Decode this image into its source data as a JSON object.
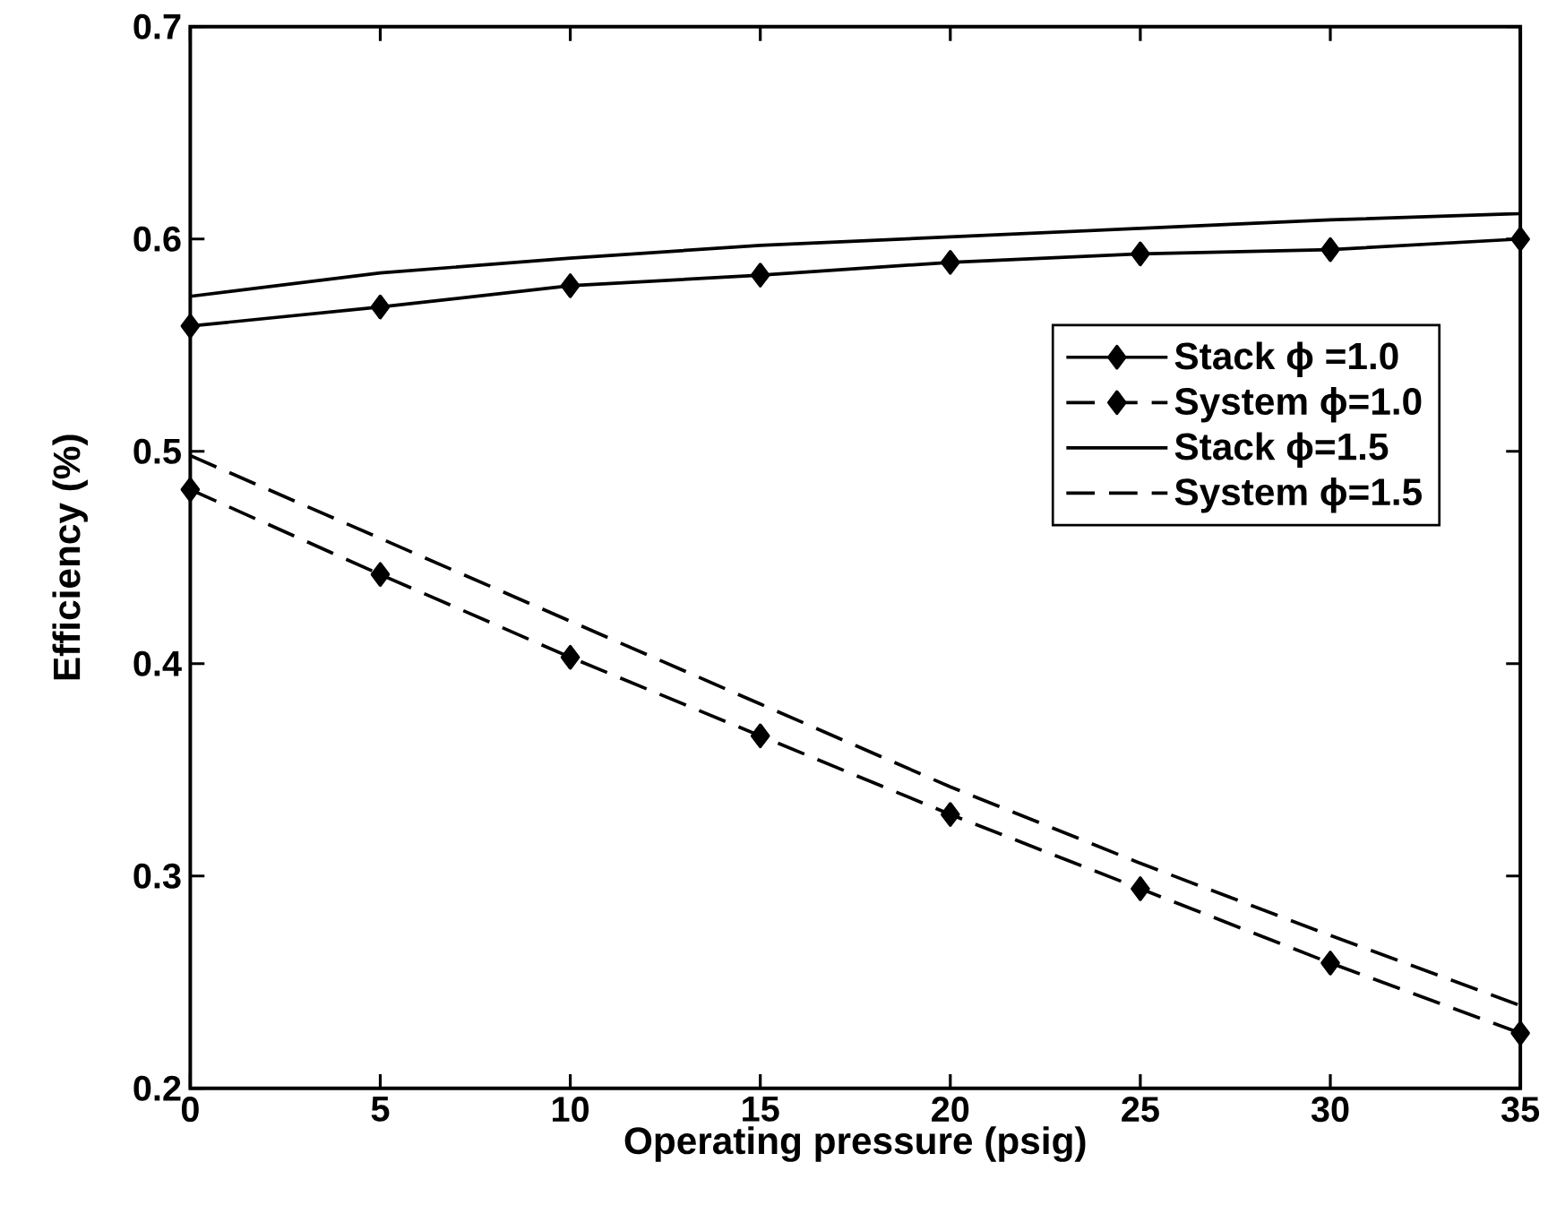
{
  "chart_data": {
    "type": "line",
    "xlabel": "Operating pressure (psig)",
    "ylabel": "Efficiency (%)",
    "x": [
      0,
      5,
      10,
      15,
      20,
      25,
      30,
      35
    ],
    "xlim": [
      0,
      35
    ],
    "xticks": [
      0,
      5,
      10,
      15,
      20,
      25,
      30,
      35
    ],
    "ylim": [
      0.2,
      0.7
    ],
    "yticks": [
      0.2,
      0.3,
      0.4,
      0.5,
      0.6,
      0.7
    ],
    "legend": "right",
    "grid": false,
    "series": [
      {
        "name": "Stack ϕ =1.0",
        "color": "#000000",
        "marker": "diamond",
        "line_style": "solid",
        "values": [
          0.559,
          0.568,
          0.578,
          0.583,
          0.589,
          0.593,
          0.595,
          0.6
        ]
      },
      {
        "name": "System ϕ=1.0",
        "color": "#000000",
        "marker": "diamond",
        "line_style": "dashed",
        "values": [
          0.482,
          0.442,
          0.403,
          0.366,
          0.329,
          0.294,
          0.259,
          0.226
        ]
      },
      {
        "name": "Stack ϕ=1.5",
        "color": "#000000",
        "marker": "none",
        "line_style": "solid",
        "values": [
          0.573,
          0.584,
          0.591,
          0.597,
          0.601,
          0.605,
          0.609,
          0.612
        ]
      },
      {
        "name": "System ϕ=1.5",
        "color": "#000000",
        "marker": "none",
        "line_style": "dashed",
        "values": [
          0.498,
          0.459,
          0.42,
          0.381,
          0.342,
          0.306,
          0.272,
          0.239
        ]
      }
    ]
  }
}
